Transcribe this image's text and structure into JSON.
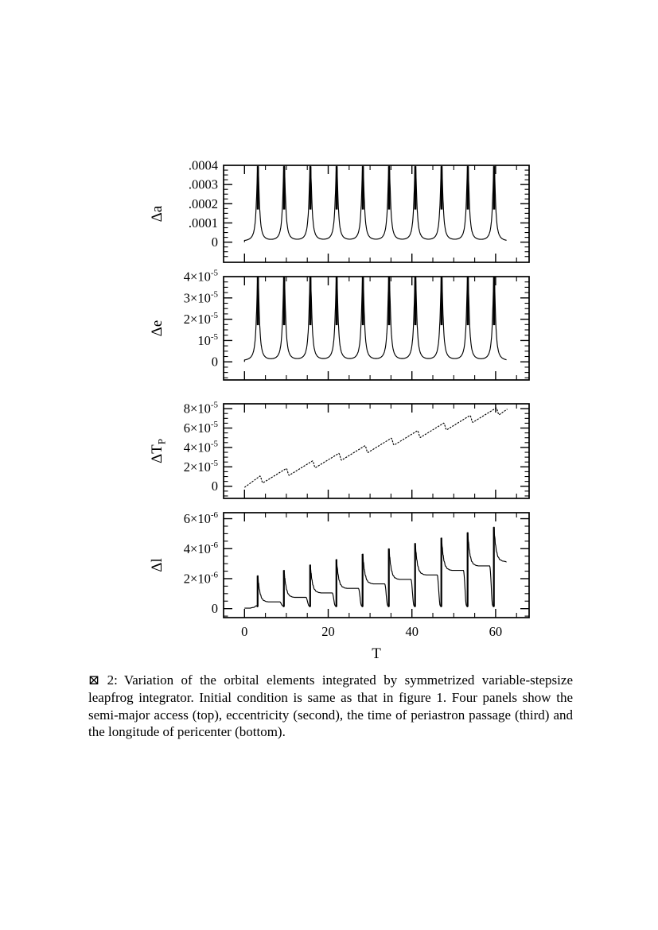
{
  "page": {
    "background": "#ffffff",
    "ink": "#000000"
  },
  "figure": {
    "caption": {
      "label": "⊠ 2:",
      "text": "Variation of the orbital elements integrated by symmetrized variable-stepsize leapfrog integrator. Initial condition is same as that in figure 1. Four panels show the semi-major access (top), eccentricity (second), the time of periastron passage (third) and the longitude of pericenter (bottom)."
    }
  },
  "chart_data": {
    "type": "line",
    "layout": "4-stacked-panels",
    "xlabel": "T",
    "x_range": [
      -5,
      68
    ],
    "x_major_ticks": [
      0,
      20,
      40,
      60
    ],
    "x_tick_labels": [
      "0",
      "20",
      "40",
      "60"
    ],
    "x_minor_step": 5,
    "pericenter_period": 6.27,
    "pericenter_times": [
      3.2,
      9.47,
      15.74,
      22.01,
      28.28,
      34.55,
      40.82,
      47.09,
      53.36,
      59.63
    ],
    "panels": [
      {
        "id": "delta-a",
        "ylabel": "Δa",
        "y_range": [
          -0.000105,
          0.0004
        ],
        "y_major_ticks": [
          0,
          0.0001,
          0.0002,
          0.0003,
          0.0004
        ],
        "y_tick_labels": [
          "0",
          ".0001",
          ".0002",
          ".0003",
          ".0004"
        ],
        "y_minor_step": 2.5e-05,
        "series": {
          "model": "lorentzian-peaks",
          "peak_times": [
            3.2,
            9.47,
            15.74,
            22.01,
            28.28,
            34.55,
            40.82,
            47.09,
            53.36,
            59.63
          ],
          "peak_value": 0.000395,
          "width": 0.38,
          "baseline": 2e-06,
          "bar_from": 0.00017,
          "t_end": 62.6
        }
      },
      {
        "id": "delta-e",
        "ylabel": "Δe",
        "y_range": [
          -8.5e-06,
          4e-05
        ],
        "y_major_ticks": [
          0,
          1e-05,
          2e-05,
          3e-05,
          4e-05
        ],
        "y_tick_labels": [
          "0",
          "10^-5",
          "2×10^-5",
          "3×10^-5",
          "4×10^-5"
        ],
        "y_minor_step": 2.5e-06,
        "series": {
          "model": "lorentzian-peaks",
          "peak_times": [
            3.2,
            9.47,
            15.74,
            22.01,
            28.28,
            34.55,
            40.82,
            47.09,
            53.36,
            59.63
          ],
          "peak_value": 3.98e-05,
          "width": 0.38,
          "baseline": 2e-07,
          "bar_from": 1.72e-05,
          "t_end": 62.6
        }
      },
      {
        "id": "delta-tp",
        "ylabel": "ΔT_P",
        "y_range": [
          -1.25e-05,
          8.5e-05
        ],
        "y_major_ticks": [
          0,
          2e-05,
          4e-05,
          6e-05,
          8e-05
        ],
        "y_tick_labels": [
          "0",
          "2×10^-5",
          "4×10^-5",
          "6×10^-5",
          "8×10^-5"
        ],
        "y_minor_step": 5e-06,
        "series": {
          "model": "saw-ramp",
          "dashed": true,
          "start": [
            0,
            -1.2e-06
          ],
          "events": [
            {
              "peak": [
                3.7,
                1.05e-05
              ],
              "dip": [
                4.4,
                3.5e-06
              ]
            },
            {
              "peak": [
                9.97,
                1.83e-05
              ],
              "dip": [
                10.67,
                1.13e-05
              ]
            },
            {
              "peak": [
                16.24,
                2.61e-05
              ],
              "dip": [
                16.94,
                1.91e-05
              ]
            },
            {
              "peak": [
                22.51,
                3.39e-05
              ],
              "dip": [
                23.21,
                2.69e-05
              ]
            },
            {
              "peak": [
                28.78,
                4.17e-05
              ],
              "dip": [
                29.48,
                3.47e-05
              ]
            },
            {
              "peak": [
                35.05,
                4.95e-05
              ],
              "dip": [
                35.75,
                4.25e-05
              ]
            },
            {
              "peak": [
                41.32,
                5.73e-05
              ],
              "dip": [
                42.02,
                5.03e-05
              ]
            },
            {
              "peak": [
                47.59,
                6.51e-05
              ],
              "dip": [
                48.29,
                5.81e-05
              ]
            },
            {
              "peak": [
                53.86,
                7.29e-05
              ],
              "dip": [
                54.56,
                6.59e-05
              ]
            },
            {
              "peak": [
                60.13,
                8.07e-05
              ],
              "dip": [
                60.83,
                7.37e-05
              ]
            }
          ],
          "end": [
            62.8,
            7.95e-05
          ]
        }
      },
      {
        "id": "delta-l",
        "ylabel": "Δl",
        "y_range": [
          -6e-07,
          6.4e-06
        ],
        "y_major_ticks": [
          0,
          2e-06,
          4e-06,
          6e-06
        ],
        "y_tick_labels": [
          "0",
          "2×10^-6",
          "4×10^-6",
          "6×10^-6"
        ],
        "y_minor_step": 5e-07,
        "series": {
          "model": "spike-train",
          "start_value": 3e-08,
          "dip_value": 1.2e-07,
          "t_end": 62.6,
          "events": [
            {
              "t": 3.2,
              "peak": 2.2e-06,
              "plateau": 4.5e-07
            },
            {
              "t": 9.47,
              "peak": 2.56e-06,
              "plateau": 7.5e-07
            },
            {
              "t": 15.74,
              "peak": 2.92e-06,
              "plateau": 1.05e-06
            },
            {
              "t": 22.01,
              "peak": 3.28e-06,
              "plateau": 1.35e-06
            },
            {
              "t": 28.28,
              "peak": 3.64e-06,
              "plateau": 1.65e-06
            },
            {
              "t": 34.55,
              "peak": 4e-06,
              "plateau": 1.95e-06
            },
            {
              "t": 40.82,
              "peak": 4.36e-06,
              "plateau": 2.25e-06
            },
            {
              "t": 47.09,
              "peak": 4.72e-06,
              "plateau": 2.55e-06
            },
            {
              "t": 53.36,
              "peak": 5.08e-06,
              "plateau": 2.85e-06
            },
            {
              "t": 59.63,
              "peak": 5.44e-06,
              "plateau": 3.15e-06
            }
          ]
        }
      }
    ]
  }
}
